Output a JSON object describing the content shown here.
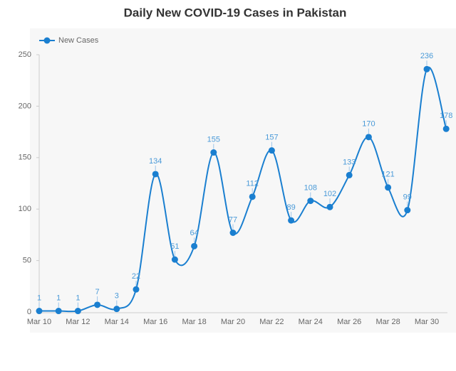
{
  "chart_data": {
    "type": "line",
    "title": "Daily New COVID-19 Cases in Pakistan",
    "categories": [
      "Mar 10",
      null,
      "Mar 12",
      null,
      "Mar 14",
      null,
      "Mar 16",
      null,
      "Mar 18",
      null,
      "Mar 20",
      null,
      "Mar 22",
      null,
      "Mar 24",
      null,
      "Mar 26",
      null,
      "Mar 28",
      null,
      "Mar 30",
      null
    ],
    "series": [
      {
        "name": "New Cases",
        "color": "#1a7fd0",
        "values": [
          1,
          1,
          1,
          7,
          3,
          22,
          134,
          51,
          64,
          155,
          77,
          112,
          157,
          89,
          108,
          102,
          133,
          170,
          121,
          99,
          236,
          178
        ]
      }
    ],
    "ylim": [
      0,
      250
    ],
    "yticks": [
      0,
      50,
      100,
      150,
      200,
      250
    ]
  }
}
